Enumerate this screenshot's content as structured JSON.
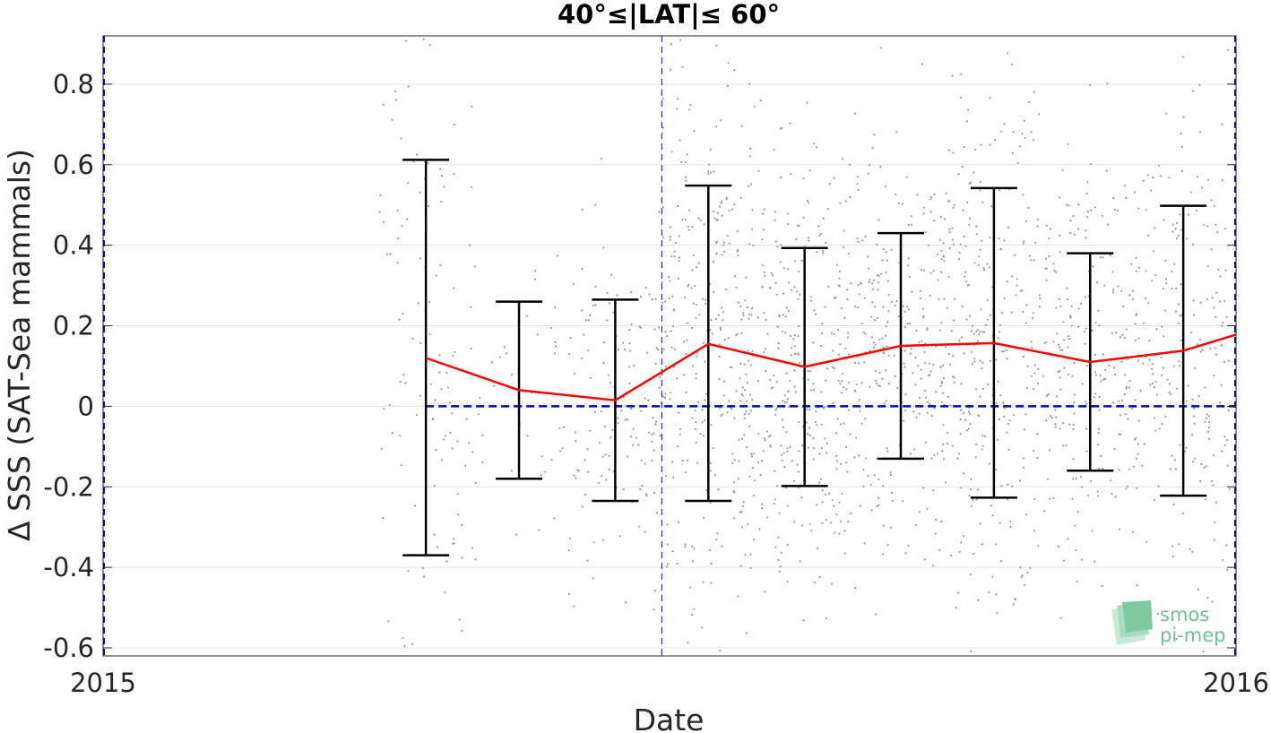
{
  "chart_data": {
    "type": "scatter",
    "title": "40°≤|LAT|≤ 60°",
    "xlabel": "Date",
    "ylabel": "Δ SSS (SAT-Sea mammals)",
    "xlim": [
      "2015-01-01",
      "2016-01-01"
    ],
    "ylim": [
      -0.62,
      0.92
    ],
    "x_ticks": [
      "2015",
      "2016"
    ],
    "y_ticks": [
      -0.6,
      -0.4,
      -0.2,
      0,
      0.2,
      0.4,
      0.6,
      0.8
    ],
    "y_tick_labels": [
      "-0.6",
      "-0.4",
      "-0.2",
      "0",
      "0.2",
      "0.4",
      "0.6",
      "0.8"
    ],
    "grid": true,
    "reference_line": {
      "y": 0,
      "color": "#0000cc",
      "style": "dashed"
    },
    "vertical_lines": [
      {
        "x": "2015-01-01",
        "color": "#0000cc",
        "style": "dashed"
      },
      {
        "x": "2015-06-30",
        "color": "#0000cc",
        "style": "dashed"
      },
      {
        "x": "2016-01-01",
        "color": "#0000cc",
        "style": "dashed"
      }
    ],
    "series": [
      {
        "type": "line_with_errorbars",
        "color": "#ff0000",
        "errorbar_color": "#000000",
        "x": [
          "2015-04-15",
          "2015-05-15",
          "2015-06-15",
          "2015-07-15",
          "2015-08-15",
          "2015-09-15",
          "2015-10-15",
          "2015-11-15",
          "2015-12-15",
          "2016-01-01"
        ],
        "mean": [
          0.12,
          0.04,
          0.015,
          0.155,
          0.098,
          0.15,
          0.157,
          0.11,
          0.138,
          0.178
        ],
        "upper": [
          0.612,
          0.26,
          0.265,
          0.548,
          0.393,
          0.43,
          0.542,
          0.38,
          0.498,
          null
        ],
        "lower": [
          -0.37,
          -0.18,
          -0.235,
          -0.235,
          -0.198,
          -0.13,
          -0.227,
          -0.16,
          -0.222,
          null
        ]
      },
      {
        "type": "scatter_cloud",
        "color": "#999999",
        "description_values": "dense cloud of individual matchup differences, mostly between -0.6 and 0.9",
        "x_range": [
          "2015-03-25",
          "2016-01-01"
        ]
      }
    ]
  },
  "logo": {
    "line1": "smos",
    "line2": "pi-mep"
  },
  "colors": {
    "mean_line": "#ff0000",
    "reference": "#0000cc",
    "scatter": "#999999",
    "logo": "#6fbf98"
  }
}
